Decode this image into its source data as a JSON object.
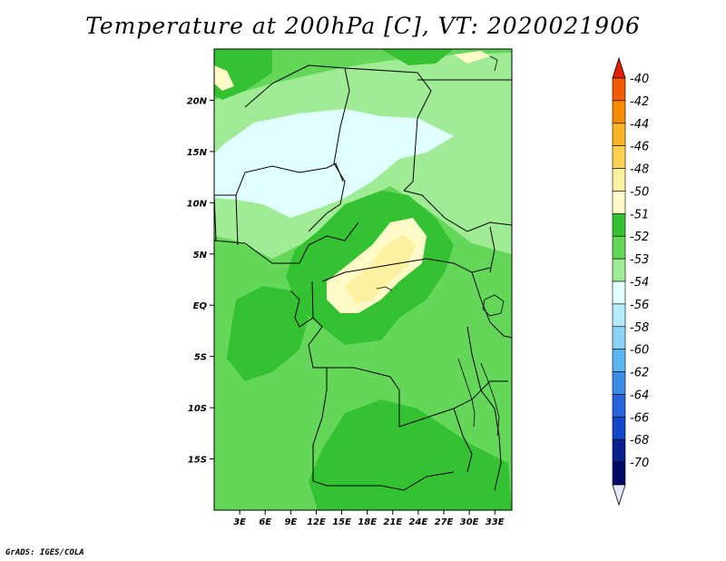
{
  "title": "Temperature at 200hPa [C], VT: 2020021906",
  "credit": "GrADS: IGES/COLA",
  "map": {
    "lon_range": [
      0,
      35
    ],
    "lat_range": [
      -20,
      25
    ],
    "x_ticks": [
      "3E",
      "6E",
      "9E",
      "12E",
      "15E",
      "18E",
      "21E",
      "24E",
      "27E",
      "30E",
      "33E"
    ],
    "y_ticks": [
      "20N",
      "15N",
      "10N",
      "5N",
      "EQ",
      "5S",
      "10S",
      "15S"
    ]
  },
  "colorbar": {
    "labels": [
      "-40",
      "-42",
      "-44",
      "-46",
      "-48",
      "-50",
      "-51",
      "-52",
      "-53",
      "-54",
      "-56",
      "-58",
      "-60",
      "-62",
      "-64",
      "-66",
      "-68",
      "-70"
    ],
    "colors": [
      "#e61e00",
      "#f05a00",
      "#f58c00",
      "#fab428",
      "#fcd250",
      "#fdf0a0",
      "#fffac8",
      "#34c232",
      "#64d75a",
      "#a0eb96",
      "#e1ffff",
      "#b4ebfa",
      "#8cd2f5",
      "#5ab4ee",
      "#3c8ce6",
      "#2864dc",
      "#1446c8",
      "#0a1e8c",
      "#000a64",
      "#e6e6ff"
    ]
  }
}
